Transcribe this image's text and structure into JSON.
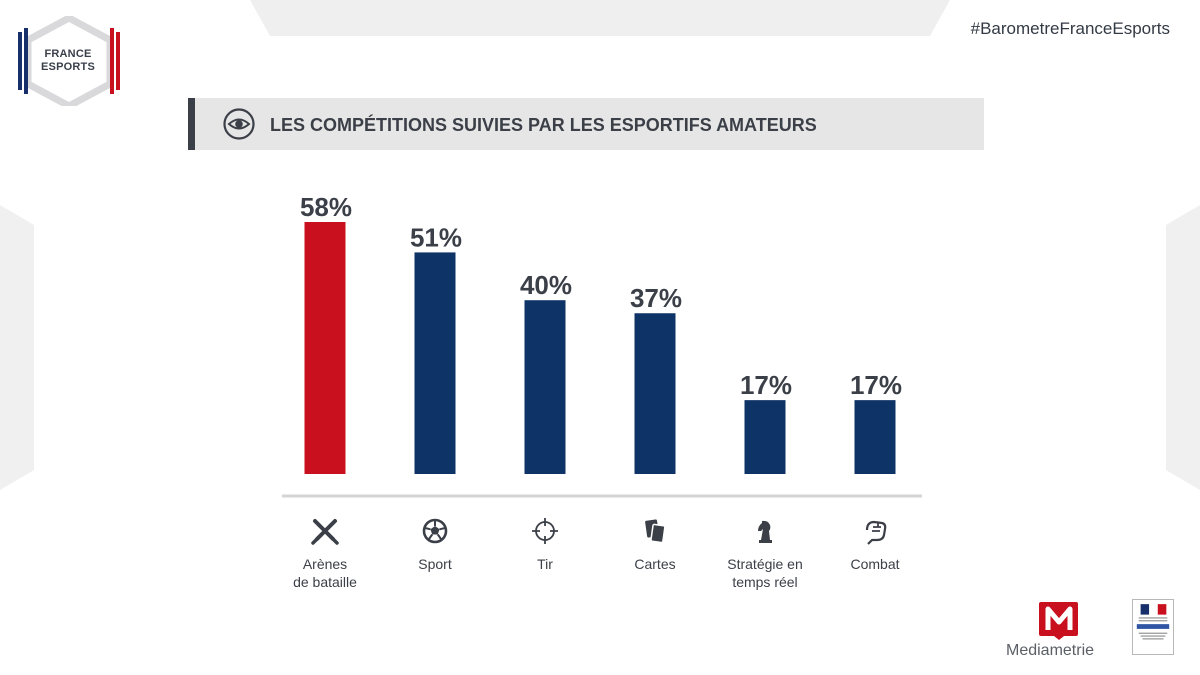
{
  "header": {
    "logo_text_line1": "FRANCE",
    "logo_text_line2": "ESPORTS",
    "hashtag": "#BarometreFranceEsports"
  },
  "title": "LES COMPÉTITIONS SUIVIES PAR LES ESPORTIFS AMATEURS",
  "chart_data": {
    "type": "bar",
    "categories": [
      "Arènes de bataille",
      "Sport",
      "Tir",
      "Cartes",
      "Stratégie en temps réel",
      "Combat"
    ],
    "category_lines": [
      [
        "Arènes",
        "de bataille"
      ],
      [
        "Sport"
      ],
      [
        "Tir"
      ],
      [
        "Cartes"
      ],
      [
        "Stratégie en",
        "temps réel"
      ],
      [
        "Combat"
      ]
    ],
    "values": [
      58,
      51,
      40,
      37,
      17,
      17
    ],
    "value_labels": [
      "58%",
      "51%",
      "40%",
      "37%",
      "17%",
      "17%"
    ],
    "ylim": [
      0,
      58
    ],
    "unit": "%",
    "grid": false,
    "colors": [
      "#c8101e",
      "#0e3366",
      "#0e3366",
      "#0e3366",
      "#0e3366",
      "#0e3366"
    ],
    "icons": [
      "crossed-swords-icon",
      "soccer-ball-icon",
      "crosshair-icon",
      "cards-icon",
      "chess-knight-icon",
      "fist-icon"
    ]
  },
  "footer": {
    "brand": "Mediametrie",
    "gov_logo": "republique-francaise-logo"
  },
  "colors": {
    "accent_red": "#c8101e",
    "navy": "#0e3366",
    "dark_text": "#3b3f47",
    "title_bg": "#e6e6e6"
  }
}
